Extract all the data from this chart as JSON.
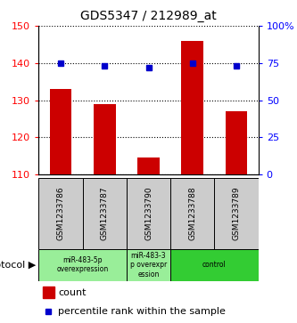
{
  "title": "GDS5347 / 212989_at",
  "samples": [
    "GSM1233786",
    "GSM1233787",
    "GSM1233790",
    "GSM1233788",
    "GSM1233789"
  ],
  "counts": [
    133,
    129,
    114.5,
    146,
    127
  ],
  "percentiles": [
    75,
    73,
    72,
    75,
    73
  ],
  "ylim_left": [
    110,
    150
  ],
  "ylim_right": [
    0,
    100
  ],
  "yticks_left": [
    110,
    120,
    130,
    140,
    150
  ],
  "yticks_right": [
    0,
    25,
    50,
    75,
    100
  ],
  "ytick_labels_left": [
    "110",
    "120",
    "130",
    "140",
    "150"
  ],
  "ytick_labels_right": [
    "0",
    "25",
    "50",
    "75",
    "100%"
  ],
  "bar_color": "#cc0000",
  "dot_color": "#0000cc",
  "sample_box_color": "#cccccc",
  "proto_light_color": "#99ee99",
  "proto_dark_color": "#33cc33",
  "proto_groups": [
    {
      "start": 0,
      "end": 1,
      "label": "miR-483-5p\noverexpression",
      "dark": false
    },
    {
      "start": 2,
      "end": 2,
      "label": "miR-483-3\np overexpr\nession",
      "dark": false
    },
    {
      "start": 3,
      "end": 4,
      "label": "control",
      "dark": true
    }
  ],
  "legend_count_label": "count",
  "legend_percentile_label": "percentile rank within the sample",
  "bar_width": 0.5
}
